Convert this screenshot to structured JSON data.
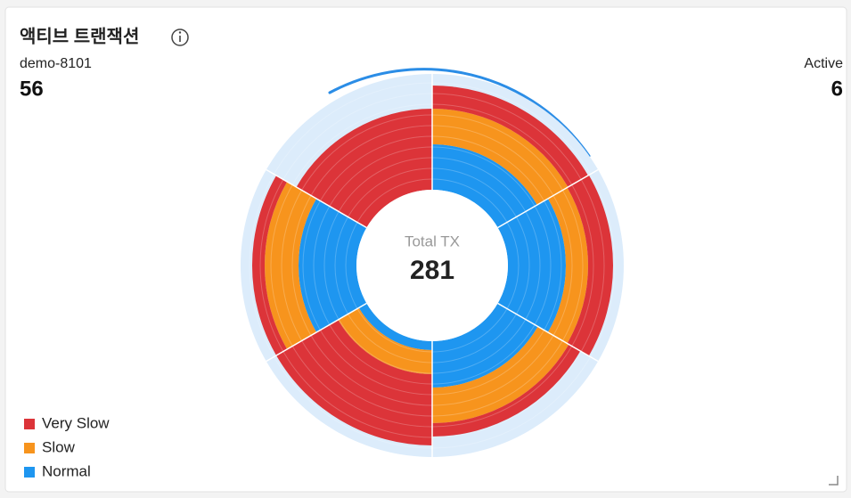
{
  "chart_data": {
    "type": "radial_stack",
    "title": "액티브 트랜잭션",
    "instance": "demo-8101",
    "instance_value": 56,
    "active_label": "Active",
    "active_value": 6,
    "center_label": "Total TX",
    "center_value": 281,
    "rlim": [
      0,
      120
    ],
    "series": [
      {
        "name": "Normal",
        "color": "#1e96f0",
        "values": [
          51,
          65,
          52,
          10,
          65,
          0
        ]
      },
      {
        "name": "Slow",
        "color": "#f7941d",
        "values": [
          40,
          25,
          40,
          27,
          38,
          0
        ]
      },
      {
        "name": "Very Slow",
        "color": "#dc3439",
        "values": [
          26,
          28,
          15,
          80,
          14,
          91
        ]
      }
    ],
    "legend": "bottom-left"
  }
}
